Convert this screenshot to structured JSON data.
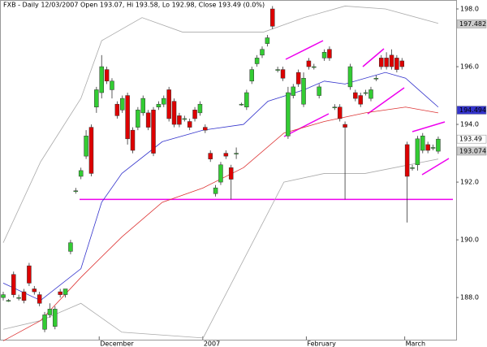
{
  "chart_data": {
    "type": "candlestick",
    "title": "FXB - Daily 12/03/2007 Open 193.07, Hi 193.58, Lo 192.98, Close 193.49 (0.0%)",
    "categories": [
      null,
      null,
      null,
      null,
      null,
      null,
      null,
      null,
      null,
      null,
      null,
      null,
      null,
      null,
      null,
      null,
      null,
      null,
      null,
      "December",
      null,
      null,
      null,
      null,
      null,
      null,
      null,
      null,
      null,
      null,
      null,
      null,
      null,
      null,
      null,
      null,
      null,
      null,
      null,
      "2007",
      null,
      null,
      null,
      null,
      null,
      null,
      null,
      null,
      null,
      null,
      null,
      null,
      null,
      null,
      null,
      null,
      null,
      null,
      null,
      "February",
      null,
      null,
      null,
      null,
      null,
      null,
      null,
      null,
      null,
      null,
      null,
      null,
      null,
      null,
      null,
      null,
      null,
      null,
      "March",
      null,
      null,
      null,
      null,
      null,
      null
    ],
    "open": [
      188.0,
      187.9,
      188.8,
      188.0,
      188.2,
      189.1,
      188.3,
      188.1,
      186.9,
      187.4,
      187.0,
      188.2,
      188.1,
      189.6,
      191.7,
      192.2,
      192.9,
      193.9,
      194.6,
      195.1,
      195.9,
      195.2,
      194.7,
      194.5,
      195.0,
      193.8,
      193.9,
      194.4,
      194.4,
      194.5,
      194.6,
      194.7,
      195.2,
      194.8,
      194.3,
      194.2,
      194.1,
      194.5,
      194.4,
      193.9,
      193.0,
      191.6,
      192.0,
      193.0,
      192.5,
      193.0,
      194.7,
      194.6,
      195.5,
      196.1,
      196.4,
      196.8,
      198.0,
      195.9,
      195.9,
      193.6,
      195.0,
      195.8,
      194.7,
      196.2,
      196.0,
      195.0,
      196.3,
      196.6,
      194.6,
      194.6,
      194.0,
      195.3,
      195.1,
      195.0,
      195.1,
      194.9,
      195.6,
      196.3,
      196.3,
      196.4,
      196.3,
      196.2,
      193.3,
      192.5,
      192.6,
      193.1,
      193.3,
      193.2,
      193.07
    ],
    "high": [
      188.2,
      187.95,
      188.9,
      188.1,
      188.3,
      189.2,
      188.4,
      188.2,
      187.5,
      187.8,
      187.7,
      188.3,
      188.3,
      190.0,
      191.8,
      192.5,
      193.8,
      194.0,
      195.3,
      196.4,
      196.0,
      195.6,
      194.8,
      195.0,
      195.1,
      193.9,
      194.6,
      195.0,
      194.5,
      194.6,
      194.8,
      195.0,
      195.3,
      194.9,
      194.4,
      194.3,
      194.2,
      194.6,
      194.8,
      194.0,
      193.1,
      191.9,
      192.7,
      193.1,
      192.6,
      193.2,
      194.75,
      195.2,
      196.0,
      196.4,
      196.7,
      197.1,
      198.1,
      196.0,
      196.0,
      195.3,
      195.4,
      195.9,
      195.8,
      196.3,
      196.1,
      195.4,
      196.6,
      196.7,
      194.7,
      194.7,
      194.1,
      196.1,
      195.2,
      195.1,
      195.2,
      195.3,
      195.7,
      196.4,
      196.5,
      196.6,
      196.4,
      196.3,
      193.4,
      192.6,
      193.6,
      193.7,
      193.4,
      193.3,
      193.58
    ],
    "low": [
      187.9,
      187.85,
      188.0,
      187.9,
      187.8,
      188.4,
      188.1,
      187.7,
      186.8,
      187.3,
      186.9,
      188.0,
      188.0,
      189.5,
      191.6,
      192.1,
      192.8,
      192.2,
      194.4,
      194.9,
      195.4,
      194.9,
      194.2,
      194.4,
      193.3,
      193.0,
      193.8,
      194.3,
      193.8,
      192.9,
      194.5,
      194.6,
      194.1,
      193.9,
      193.9,
      194.1,
      193.8,
      194.1,
      194.3,
      193.7,
      192.7,
      191.5,
      191.9,
      192.8,
      191.4,
      192.8,
      194.65,
      194.5,
      195.4,
      196.0,
      196.3,
      196.7,
      197.3,
      195.8,
      195.5,
      193.5,
      194.9,
      195.3,
      194.6,
      195.9,
      195.9,
      194.9,
      196.2,
      196.2,
      194.5,
      194.1,
      191.4,
      195.2,
      194.8,
      194.6,
      195.0,
      194.8,
      195.5,
      195.9,
      195.9,
      195.9,
      195.8,
      195.9,
      190.6,
      192.4,
      192.4,
      193.0,
      193.0,
      193.1,
      192.98
    ],
    "close": [
      188.1,
      187.9,
      188.1,
      188.0,
      187.9,
      188.5,
      188.2,
      187.8,
      187.4,
      187.6,
      187.6,
      188.1,
      188.3,
      189.9,
      191.7,
      192.4,
      193.6,
      192.3,
      195.2,
      196.0,
      195.5,
      195.5,
      194.3,
      194.9,
      193.5,
      193.1,
      194.5,
      194.9,
      193.9,
      193.0,
      194.7,
      194.9,
      194.2,
      194.0,
      194.0,
      194.2,
      193.9,
      194.2,
      194.7,
      193.8,
      192.8,
      191.8,
      192.6,
      192.9,
      192.1,
      193.0,
      194.7,
      195.1,
      195.9,
      196.3,
      196.6,
      197.0,
      197.4,
      195.9,
      195.6,
      195.1,
      195.3,
      195.4,
      195.6,
      196.0,
      196.0,
      195.3,
      196.5,
      196.3,
      194.6,
      194.2,
      193.9,
      196.0,
      194.9,
      194.7,
      195.1,
      195.2,
      195.6,
      196.0,
      196.0,
      196.0,
      195.9,
      196.0,
      192.2,
      192.5,
      193.5,
      193.6,
      193.1,
      193.2,
      193.49
    ],
    "up_color": "#33cc33",
    "down_color": "#dd0000",
    "overlays": [
      {
        "color": "#aaaaaa",
        "x": [
          0,
          7.2,
          15,
          19,
          26.8,
          34.6,
          42.5,
          50.3,
          58.1,
          66,
          73.8,
          84
        ],
        "values": [
          189.9,
          192.7,
          194.9,
          196.9,
          197.7,
          197.2,
          197.2,
          197.2,
          197.7,
          198.1,
          198.0,
          197.5
        ]
      },
      {
        "color": "#aaaaaa",
        "x": [
          0,
          7.2,
          15,
          22.9,
          38.6,
          46.4,
          54.2,
          62,
          69.9,
          84
        ],
        "values": [
          186.9,
          187.2,
          187.8,
          186.8,
          186.6,
          189.3,
          192.0,
          192.3,
          192.3,
          192.8
        ]
      },
      {
        "color": "#3333cc",
        "x": [
          0,
          7.2,
          15,
          19,
          22.9,
          30.7,
          38.6,
          46.4,
          51.1,
          58.1,
          62,
          66,
          73.8,
          77.7,
          84
        ],
        "values": [
          188.5,
          187.9,
          189.0,
          191.3,
          192.3,
          193.4,
          193.8,
          194.0,
          194.8,
          195.2,
          195.5,
          195.4,
          195.8,
          195.6,
          194.6
        ]
      },
      {
        "color": "#dd3333",
        "x": [
          0,
          7.2,
          15,
          22.9,
          30.7,
          38.6,
          46.4,
          54.2,
          62,
          69.9,
          77.7,
          84
        ],
        "values": [
          186.5,
          187.2,
          188.7,
          190.1,
          191.3,
          191.8,
          192.5,
          193.7,
          194.1,
          194.4,
          194.6,
          194.4
        ]
      }
    ],
    "hline": 191.4,
    "hline_color": "#ee00ee",
    "last_values": [
      {
        "value": 197.482,
        "color": "#cccccc"
      },
      {
        "value": 194.494,
        "color": "#3333cc"
      },
      {
        "value": 193.49,
        "color": "#ffffff"
      },
      {
        "value": 193.074,
        "color": "#cccccc"
      }
    ],
    "ylim": [
      186.54,
      198.31
    ],
    "yticks": [
      {
        "value": 188,
        "label": "188.0"
      },
      {
        "value": 190,
        "label": "190.0"
      },
      {
        "value": 192,
        "label": "192.0"
      },
      {
        "value": 194,
        "label": "194.0"
      },
      {
        "value": 196,
        "label": "196.0"
      },
      {
        "value": 198,
        "label": "198.0"
      }
    ]
  }
}
